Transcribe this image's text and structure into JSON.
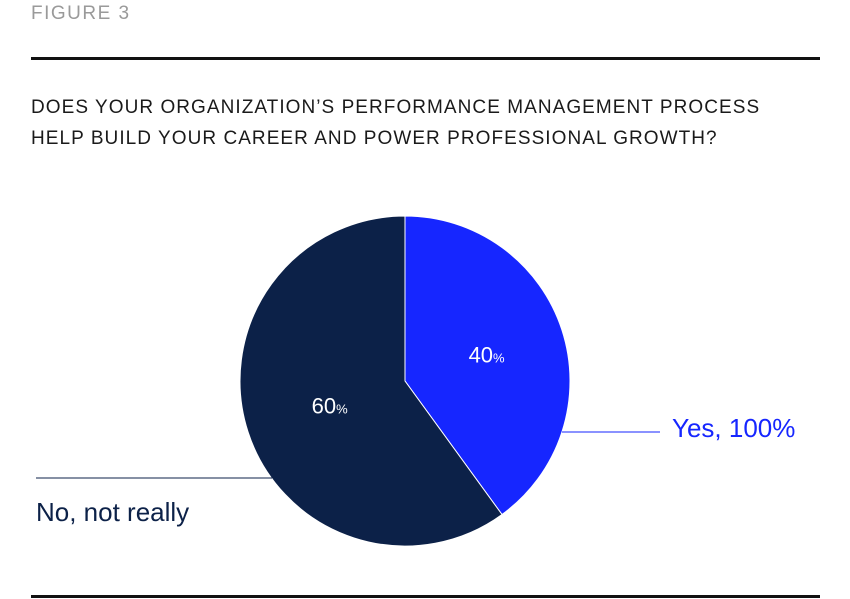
{
  "figure_label": "FIGURE 3",
  "question": {
    "line1": "DOES YOUR ORGANIZATION’S PERFORMANCE MANAGEMENT PROCESS",
    "line2": "HELP BUILD YOUR CAREER AND POWER PROFESSIONAL GROWTH?"
  },
  "colors": {
    "yes": "#1626ff",
    "no": "#0c2148",
    "rule": "#111111"
  },
  "chart_data": {
    "type": "pie",
    "slices": [
      {
        "key": "yes",
        "value": 40,
        "value_text": "40",
        "unit": "%",
        "legend": "Yes, 100%",
        "color": "#1626ff"
      },
      {
        "key": "no",
        "value": 60,
        "value_text": "60",
        "unit": "%",
        "legend": "No, not really",
        "color": "#0c2148"
      }
    ],
    "start": "12 o'clock",
    "direction": "clockwise",
    "legend_placement": "callouts"
  }
}
